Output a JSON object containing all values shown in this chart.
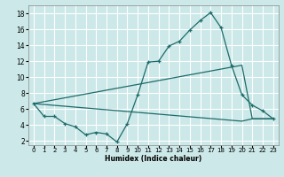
{
  "xlabel": "Humidex (Indice chaleur)",
  "bg_color": "#cce8e8",
  "grid_color": "#ffffff",
  "line_color": "#1e6b6b",
  "xlim": [
    -0.5,
    23.5
  ],
  "ylim": [
    1.5,
    19.0
  ],
  "xticks": [
    0,
    1,
    2,
    3,
    4,
    5,
    6,
    7,
    8,
    9,
    10,
    11,
    12,
    13,
    14,
    15,
    16,
    17,
    18,
    19,
    20,
    21,
    22,
    23
  ],
  "yticks": [
    2,
    4,
    6,
    8,
    10,
    12,
    14,
    16,
    18
  ],
  "curve1_x": [
    0,
    1,
    2,
    3,
    4,
    5,
    6,
    7,
    8,
    9,
    10,
    11,
    12,
    13,
    14,
    15,
    16,
    17,
    18,
    19,
    20,
    21,
    22,
    23
  ],
  "curve1_y": [
    6.7,
    5.1,
    5.1,
    4.2,
    3.8,
    2.8,
    3.1,
    2.9,
    1.9,
    4.2,
    7.8,
    11.9,
    12.0,
    13.9,
    14.5,
    15.9,
    17.1,
    18.1,
    16.2,
    11.5,
    7.8,
    6.5,
    5.8,
    4.8
  ],
  "curve2_x": [
    0,
    20,
    21,
    22,
    23
  ],
  "curve2_y": [
    6.7,
    11.5,
    4.8,
    4.8,
    4.8
  ],
  "curve3_x": [
    0,
    20,
    21,
    22,
    23
  ],
  "curve3_y": [
    6.7,
    4.5,
    4.8,
    4.8,
    4.8
  ]
}
